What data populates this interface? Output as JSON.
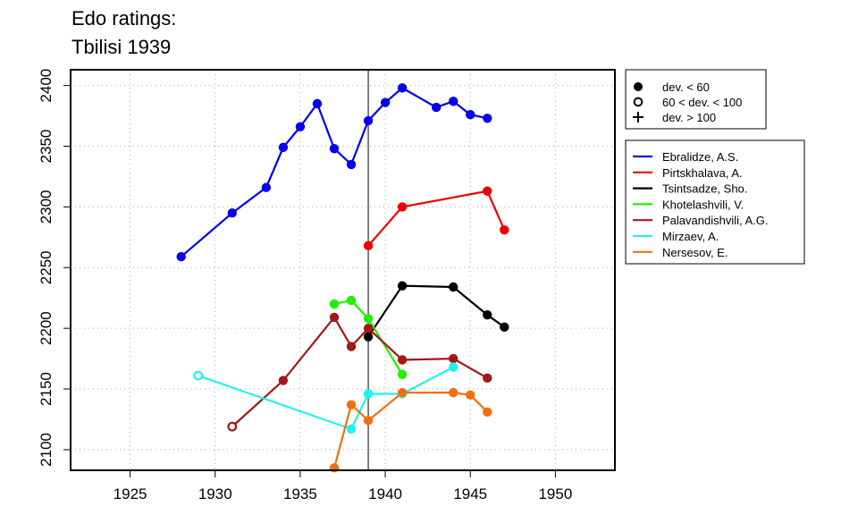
{
  "chart_data": {
    "type": "line",
    "title_lines": [
      "Edo ratings:",
      "Tbilisi 1939"
    ],
    "xlabel": "",
    "ylabel": "",
    "xlim": [
      1921.5,
      1953.5
    ],
    "ylim": [
      2083,
      2413
    ],
    "x_ticks": [
      1925,
      1930,
      1935,
      1940,
      1945,
      1950
    ],
    "y_ticks": [
      2100,
      2150,
      2200,
      2250,
      2300,
      2350,
      2400
    ],
    "grid": true,
    "marker_line_x": 1939,
    "deviation_legend": [
      {
        "symbol": "filled",
        "label": "dev. < 60"
      },
      {
        "symbol": "open",
        "label": "60 < dev. < 100"
      },
      {
        "symbol": "plus",
        "label": "dev. > 100"
      }
    ],
    "series": [
      {
        "name": "Ebralidze, A.S.",
        "color": "#0000ee",
        "points": [
          {
            "x": 1928,
            "y": 2259,
            "dev": "filled"
          },
          {
            "x": 1931,
            "y": 2295,
            "dev": "filled"
          },
          {
            "x": 1933,
            "y": 2316,
            "dev": "filled"
          },
          {
            "x": 1934,
            "y": 2349,
            "dev": "filled"
          },
          {
            "x": 1935,
            "y": 2366,
            "dev": "filled"
          },
          {
            "x": 1936,
            "y": 2385,
            "dev": "filled"
          },
          {
            "x": 1937,
            "y": 2348,
            "dev": "filled"
          },
          {
            "x": 1938,
            "y": 2335,
            "dev": "filled"
          },
          {
            "x": 1939,
            "y": 2371,
            "dev": "filled"
          },
          {
            "x": 1940,
            "y": 2386,
            "dev": "filled"
          },
          {
            "x": 1941,
            "y": 2398,
            "dev": "filled"
          },
          {
            "x": 1943,
            "y": 2382,
            "dev": "filled"
          },
          {
            "x": 1944,
            "y": 2387,
            "dev": "filled"
          },
          {
            "x": 1945,
            "y": 2376,
            "dev": "filled"
          },
          {
            "x": 1946,
            "y": 2373,
            "dev": "filled"
          }
        ]
      },
      {
        "name": "Pirtskhalava, A.",
        "color": "#ee0000",
        "points": [
          {
            "x": 1939,
            "y": 2268,
            "dev": "filled"
          },
          {
            "x": 1941,
            "y": 2300,
            "dev": "filled"
          },
          {
            "x": 1946,
            "y": 2313,
            "dev": "filled"
          },
          {
            "x": 1947,
            "y": 2281,
            "dev": "filled"
          }
        ]
      },
      {
        "name": "Tsintsadze, Sho.",
        "color": "#000000",
        "points": [
          {
            "x": 1939,
            "y": 2193,
            "dev": "filled"
          },
          {
            "x": 1941,
            "y": 2235,
            "dev": "filled"
          },
          {
            "x": 1944,
            "y": 2234,
            "dev": "filled"
          },
          {
            "x": 1946,
            "y": 2211,
            "dev": "filled"
          },
          {
            "x": 1947,
            "y": 2201,
            "dev": "filled"
          }
        ]
      },
      {
        "name": "Khotelashvili, V.",
        "color": "#22ee00",
        "points": [
          {
            "x": 1937,
            "y": 2220,
            "dev": "filled"
          },
          {
            "x": 1938,
            "y": 2223,
            "dev": "filled"
          },
          {
            "x": 1939,
            "y": 2208,
            "dev": "filled"
          },
          {
            "x": 1941,
            "y": 2162,
            "dev": "filled"
          }
        ]
      },
      {
        "name": "Palavandishvili, A.G.",
        "color": "#a01818",
        "points": [
          {
            "x": 1931,
            "y": 2119,
            "dev": "open"
          },
          {
            "x": 1934,
            "y": 2157,
            "dev": "filled"
          },
          {
            "x": 1937,
            "y": 2209,
            "dev": "filled"
          },
          {
            "x": 1938,
            "y": 2185,
            "dev": "filled"
          },
          {
            "x": 1939,
            "y": 2200,
            "dev": "filled"
          },
          {
            "x": 1941,
            "y": 2174,
            "dev": "filled"
          },
          {
            "x": 1944,
            "y": 2175,
            "dev": "filled"
          },
          {
            "x": 1946,
            "y": 2159,
            "dev": "filled"
          }
        ]
      },
      {
        "name": "Mirzaev, A.",
        "color": "#22f0f0",
        "points": [
          {
            "x": 1929,
            "y": 2161,
            "dev": "open"
          },
          {
            "x": 1938,
            "y": 2117,
            "dev": "filled"
          },
          {
            "x": 1939,
            "y": 2146,
            "dev": "filled"
          },
          {
            "x": 1941,
            "y": 2146,
            "dev": "filled"
          },
          {
            "x": 1944,
            "y": 2168,
            "dev": "filled"
          }
        ]
      },
      {
        "name": "Nersesov, E.",
        "color": "#f07010",
        "points": [
          {
            "x": 1937,
            "y": 2085,
            "dev": "filled"
          },
          {
            "x": 1938,
            "y": 2137,
            "dev": "filled"
          },
          {
            "x": 1939,
            "y": 2124,
            "dev": "filled"
          },
          {
            "x": 1941,
            "y": 2147,
            "dev": "filled"
          },
          {
            "x": 1944,
            "y": 2147,
            "dev": "filled"
          },
          {
            "x": 1945,
            "y": 2145,
            "dev": "filled"
          },
          {
            "x": 1946,
            "y": 2131,
            "dev": "filled"
          }
        ]
      }
    ]
  }
}
